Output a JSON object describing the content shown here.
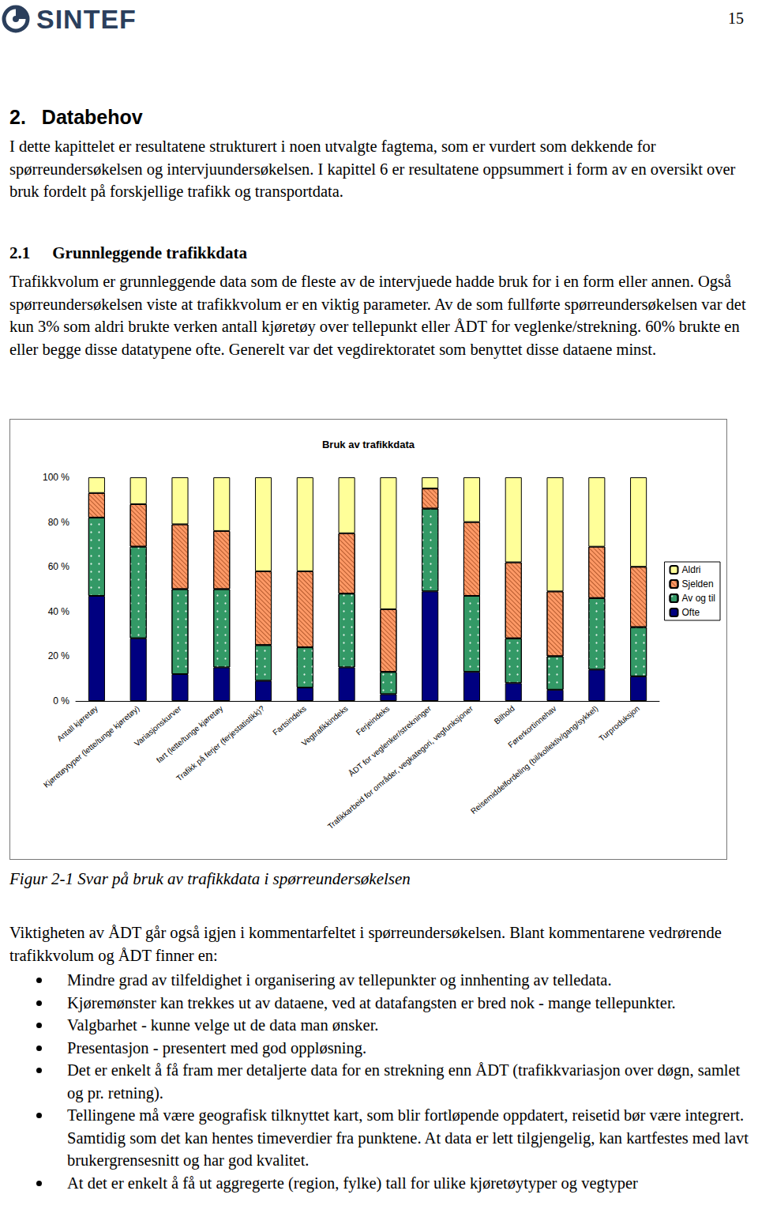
{
  "header": {
    "logo": "SINTEF",
    "page": "15"
  },
  "heading": {
    "number": "2.",
    "title": "Databehov"
  },
  "intro": "I dette kapittelet er resultatene strukturert i noen utvalgte fagtema, som er vurdert som dekkende for spørreundersøkelsen og intervjuundersøkelsen. I kapittel 6 er resultatene oppsummert i form av en oversikt over bruk fordelt på forskjellige trafikk og transportdata.",
  "section": {
    "number": "2.1",
    "title": "Grunnleggende trafikkdata"
  },
  "paragraph": "Trafikkvolum er grunnleggende data som de fleste av de intervjuede hadde bruk for i en form eller annen. Også spørreundersøkelsen viste at trafikkvolum er en viktig parameter. Av de som fullførte spørreundersøkelsen var det kun 3% som aldri brukte verken antall kjøretøy over tellepunkt eller ÅDT for veglenke/strekning. 60% brukte en eller begge disse datatypene ofte. Generelt var det vegdirektoratet som benyttet disse dataene minst.",
  "chart_data": {
    "type": "bar",
    "title": "Bruk av trafikkdata",
    "stacked": true,
    "grid": false,
    "legend": "right",
    "categories": [
      "Antall kjøretøy",
      "Kjøretøytyper (lette/tunge kjøretøy)",
      "Variasjonskurver",
      "fart (lette/tunge kjøretøy",
      "Trafikk på ferjer (ferjestatistikk)?",
      "Fartsindeks",
      "Vegtrafikkindeks",
      "Ferjeindeks",
      "ÅDT for veglenker/strekninger",
      "Trafikkarbeid for områder, vegkategori, vegfunksjoner",
      "Bilhold",
      "Førerkortinnehav",
      "Reisemiddelfordeling (bil/kollektiv/gang/sykkel)",
      "Turproduksjon"
    ],
    "series": [
      {
        "name": "Ofte",
        "color": "#000080",
        "values": [
          47,
          28,
          12,
          15,
          9,
          6,
          15,
          3,
          49,
          13,
          8,
          5,
          14,
          11
        ]
      },
      {
        "name": "Av og til",
        "color": "#339966",
        "values": [
          35,
          41,
          38,
          35,
          16,
          18,
          33,
          10,
          37,
          34,
          20,
          15,
          32,
          22
        ]
      },
      {
        "name": "Sjelden",
        "color": "#ff9966",
        "values": [
          11,
          19,
          29,
          26,
          33,
          34,
          27,
          28,
          9,
          33,
          34,
          29,
          23,
          27
        ]
      },
      {
        "name": "Aldri",
        "color": "#ffff99",
        "values": [
          7,
          12,
          21,
          24,
          42,
          42,
          25,
          59,
          5,
          20,
          38,
          51,
          31,
          40
        ]
      }
    ],
    "ylim": [
      0,
      100
    ],
    "yticks": [
      {
        "value": 0,
        "label": "0 %"
      },
      {
        "value": 20,
        "label": "20 %"
      },
      {
        "value": 40,
        "label": "40 %"
      },
      {
        "value": 60,
        "label": "60 %"
      },
      {
        "value": 80,
        "label": "80 %"
      },
      {
        "value": 100,
        "label": "100 %"
      }
    ]
  },
  "caption": "Figur 2-1 Svar på bruk av trafikkdata i spørreundersøkelsen",
  "after": "Viktigheten av ÅDT går også igjen i kommentarfeltet i spørreundersøkelsen. Blant kommentarene vedrørende trafikkvolum og ÅDT finner en:",
  "bullets": [
    "Mindre grad av tilfeldighet i organisering av tellepunkter og innhenting av telledata.",
    "Kjøremønster kan trekkes ut av dataene, ved at datafangsten er bred nok - mange tellepunkter.",
    "Valgbarhet - kunne velge ut de data man ønsker.",
    "Presentasjon - presentert med god oppløsning.",
    "Det er enkelt å få fram mer detaljerte data for en strekning enn ÅDT (trafikkvariasjon over døgn, samlet og pr. retning).",
    "Tellingene må være geografisk tilknyttet kart, som blir fortløpende oppdatert, reisetid bør være integrert. Samtidig som det kan hentes timeverdier fra punktene. At data er lett tilgjengelig, kan kartfestes med lavt brukergrensesnitt og har god kvalitet.",
    "At det er enkelt å få ut aggregerte (region, fylke) tall for ulike kjøretøytyper og vegtyper"
  ]
}
